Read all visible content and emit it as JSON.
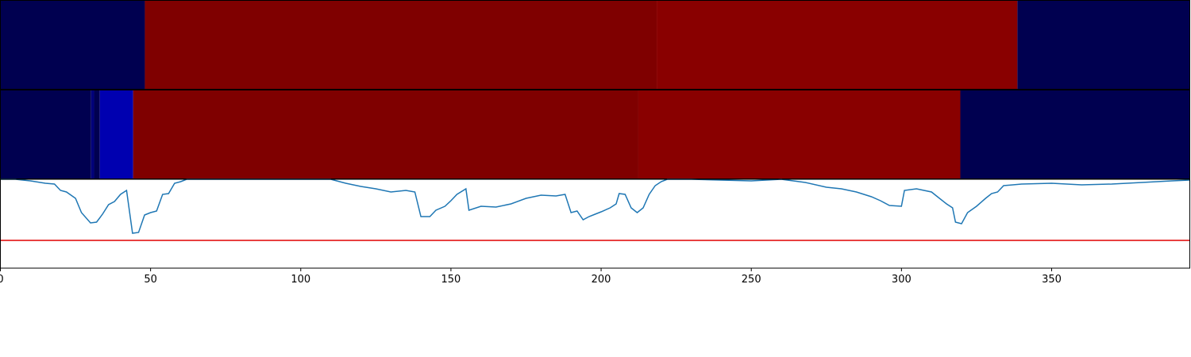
{
  "chart_data": {
    "type": "strips-line",
    "xlim": [
      0,
      396
    ],
    "xticks": [
      0,
      50,
      100,
      150,
      200,
      250,
      300,
      350
    ],
    "heatmaps": [
      {
        "edges": [
          0,
          48.1,
          218.5,
          338.6,
          396
        ],
        "colors": [
          "#000050",
          "#7f0000",
          "#890000",
          "#000050"
        ]
      },
      {
        "edges": [
          0,
          30.2,
          31.2,
          33.1,
          44.2,
          212.4,
          319.6,
          396
        ],
        "colors": [
          "#000050",
          "#00007a",
          "#000050",
          "#0000b0",
          "#7f0000",
          "#890000",
          "#000050"
        ]
      }
    ],
    "line": {
      "color": "#1f77b4",
      "ylim": [
        0,
        112
      ],
      "x": [
        0,
        5,
        10,
        15,
        18,
        20,
        22,
        25,
        27,
        30,
        32,
        34,
        36,
        38,
        40,
        42,
        44,
        46,
        48,
        50,
        52,
        54,
        56,
        58,
        60,
        62,
        70,
        110,
        115,
        120,
        125,
        130,
        135,
        138,
        140,
        143,
        145,
        148,
        150,
        152,
        155,
        156,
        160,
        165,
        170,
        175,
        180,
        185,
        188,
        190,
        192,
        194,
        196,
        198,
        200,
        203,
        205,
        206,
        208,
        210,
        212,
        214,
        216,
        218,
        220,
        222,
        230,
        250,
        260,
        268,
        275,
        280,
        285,
        290,
        293,
        296,
        300,
        301,
        305,
        310,
        312,
        315,
        317,
        318,
        320,
        322,
        325,
        328,
        330,
        332,
        334,
        340,
        350,
        360,
        370,
        380,
        390,
        396
      ],
      "values": [
        112,
        112,
        110,
        107,
        106,
        98,
        96,
        88,
        70,
        57,
        58,
        68,
        80,
        84,
        93,
        98,
        44,
        45,
        67,
        70,
        72,
        93,
        94,
        107,
        109,
        112,
        112,
        112,
        107,
        103,
        100,
        96,
        98,
        96,
        65,
        65,
        73,
        78,
        85,
        93,
        100,
        73,
        78,
        77,
        81,
        88,
        92,
        91,
        93,
        70,
        72,
        61,
        65,
        68,
        71,
        76,
        81,
        94,
        93,
        76,
        70,
        76,
        93,
        104,
        109,
        112,
        112,
        110,
        112,
        108,
        102,
        100,
        96,
        90,
        85,
        79,
        78,
        98,
        100,
        96,
        90,
        81,
        76,
        58,
        56,
        70,
        78,
        88,
        94,
        96,
        104,
        106,
        107,
        105,
        106,
        108,
        110,
        111
      ]
    },
    "hline": {
      "value": 35,
      "color": "#e00000"
    }
  }
}
